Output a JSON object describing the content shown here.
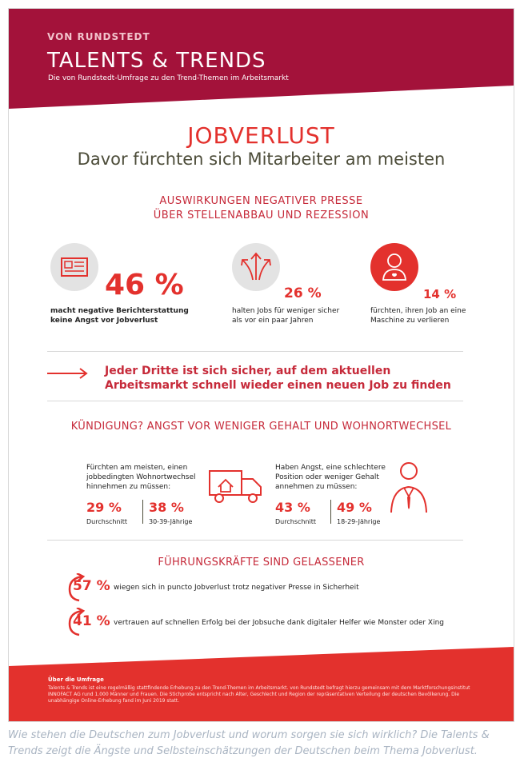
{
  "header": {
    "brand": "VON RUNDSTEDT",
    "title": "TALENTS & TRENDS",
    "subtitle": "Die von Rundstedt-Umfrage zu den Trend-Themen im Arbeitsmarkt"
  },
  "main": {
    "title": "JOBVERLUST",
    "subtitle": "Davor fürchten sich Mitarbeiter am meisten"
  },
  "section1": {
    "heading_line1": "AUSWIRKUNGEN NEGATIVER PRESSE",
    "heading_line2": "ÜBER STELLENABBAU UND REZESSION",
    "stats": [
      {
        "value": "46 %",
        "caption_line1": "macht negative Berichterstattung",
        "caption_line2": "keine Angst vor Jobverlust"
      },
      {
        "value": "26 %",
        "caption_line1": "halten Jobs für weniger sicher",
        "caption_line2": "als vor ein paar Jahren"
      },
      {
        "value": "14 %",
        "caption_line1": "fürchten, ihren Job an eine",
        "caption_line2": "Maschine zu verlieren"
      }
    ]
  },
  "claim": {
    "line1": "Jeder Dritte ist sich sicher, auf dem aktuellen",
    "line2": "Arbeitsmarkt schnell wieder einen neuen Job zu finden"
  },
  "section2": {
    "heading": "KÜNDIGUNG? ANGST VOR WENIGER GEHALT UND WOHNORTWECHSEL",
    "left": {
      "intro_line1": "Fürchten am meisten, einen",
      "intro_line2": "jobbedingten Wohnortwechsel",
      "intro_line3": "hinnehmen zu müssen:",
      "value_a": "29 %",
      "label_a": "Durchschnitt",
      "value_b": "38 %",
      "label_b": "30-39-Jährige"
    },
    "right": {
      "intro_line1": "Haben Angst, eine schlechtere",
      "intro_line2": "Position oder weniger Gehalt",
      "intro_line3": "annehmen zu müssen:",
      "value_a": "43 %",
      "label_a": "Durchschnitt",
      "value_b": "49 %",
      "label_b": "18-29-Jährige"
    }
  },
  "section3": {
    "heading": "FÜHRUNGSKRÄFTE SIND GELASSENER",
    "items": [
      {
        "value": "57 %",
        "text": "wiegen sich in puncto Jobverlust trotz negativer Presse in Sicherheit"
      },
      {
        "value": "41 %",
        "text": "vertrauen auf schnellen Erfolg bei der Jobsuche dank digitaler Helfer wie Monster oder Xing"
      }
    ]
  },
  "footer": {
    "heading": "Über die Umfrage",
    "text": "Talents & Trends ist eine regelmäßig stattfindende Erhebung zu den Trend-Themen im Arbeitsmarkt. von Rundstedt befragt hierzu gemeinsam mit dem Marktforschungsinstitut INNOFACT AG rund 1.000 Männer und Frauen. Die Stichprobe entspricht nach Alter, Geschlecht und Region der repräsentativen Verteilung der deutschen Bevölkerung. Die unabhängige Online-Erhebung fand im Juni 2019 statt."
  },
  "caption": "Wie stehen die Deutschen zum Jobverlust und worum sorgen sie sich wirklich? Die Talents & Trends zeigt die Ängste und Selbsteinschätzungen der Deutschen beim Thema Jobverlust.",
  "colors": {
    "brand_red": "#a3123a",
    "accent_red": "#e3312d",
    "olive": "#4d4d3a",
    "grey": "#e0e0e0"
  }
}
